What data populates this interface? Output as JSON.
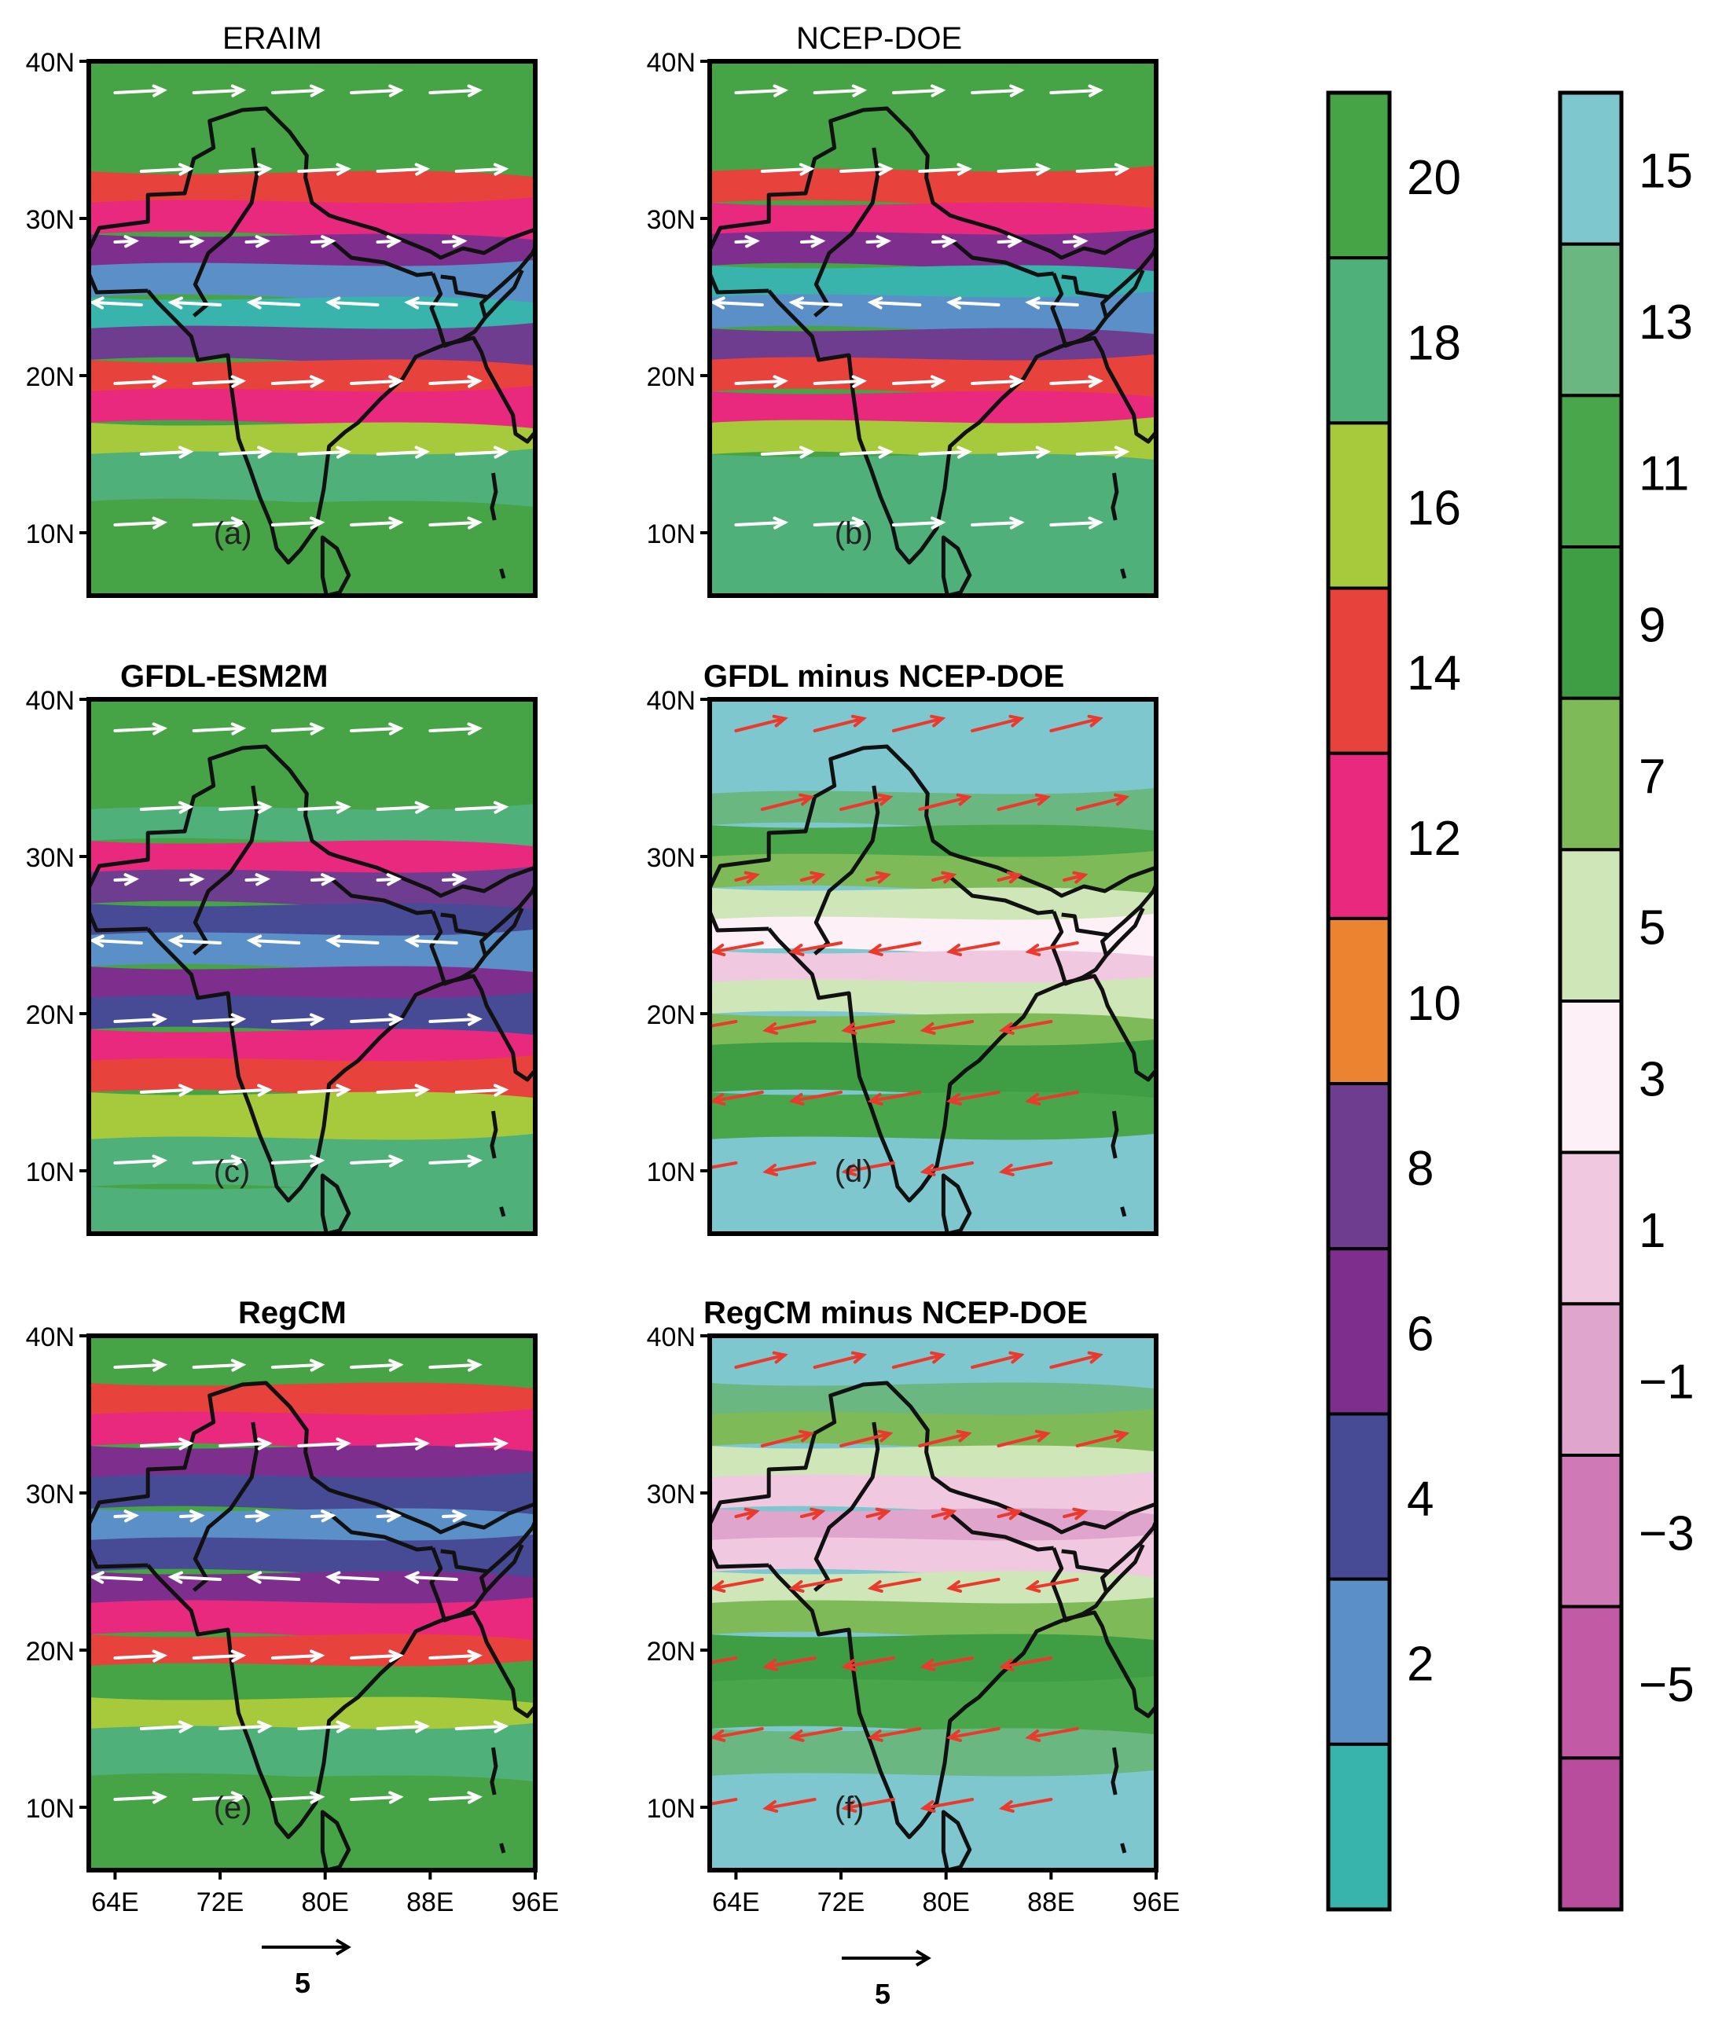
{
  "panels": [
    {
      "id": "a",
      "title": "ERAIM",
      "label": "(a)",
      "type": "field",
      "vectorColor": "white",
      "bold": false
    },
    {
      "id": "b",
      "title": "NCEP-DOE",
      "label": "(b)",
      "type": "field",
      "vectorColor": "white",
      "bold": false
    },
    {
      "id": "c",
      "title": "GFDL-ESM2M",
      "label": "(c)",
      "type": "field",
      "vectorColor": "white",
      "bold": true
    },
    {
      "id": "d",
      "title": "GFDL minus NCEP-DOE",
      "label": "(d)",
      "type": "diff",
      "vectorColor": "red",
      "bold": true
    },
    {
      "id": "e",
      "title": "RegCM",
      "label": "(e)",
      "type": "field",
      "vectorColor": "white",
      "bold": true
    },
    {
      "id": "f",
      "title": "RegCM minus NCEP-DOE",
      "label": "(f)",
      "type": "diff",
      "vectorColor": "red",
      "bold": true
    }
  ],
  "lat_ticks": [
    "40N",
    "30N",
    "20N",
    "10N"
  ],
  "lon_ticks": [
    "64E",
    "72E",
    "80E",
    "88E",
    "96E"
  ],
  "map_extent": {
    "lon": [
      62,
      96
    ],
    "lat": [
      6,
      40
    ]
  },
  "reference_vector": {
    "label": "5",
    "value": 5
  },
  "colorbar_field": {
    "labels": [
      "20",
      "18",
      "16",
      "14",
      "12",
      "10",
      "8",
      "6",
      "4",
      "2"
    ],
    "colors": [
      "#46a346",
      "#4fb07a",
      "#a7c93c",
      "#e8423c",
      "#e8297d",
      "#eb8330",
      "#6f3d8f",
      "#7e2f8e",
      "#474a95",
      "#5b8fc8",
      "#38b4ad"
    ]
  },
  "colorbar_diff": {
    "labels": [
      "15",
      "13",
      "11",
      "9",
      "7",
      "5",
      "3",
      "1",
      "-1",
      "-3",
      "-5"
    ],
    "colors": [
      "#7ec7cf",
      "#6bb781",
      "#49a64a",
      "#3f9e44",
      "#7eba57",
      "#cfe6b9",
      "#fdf0f6",
      "#f0c9e0",
      "#e0a5cc",
      "#cf79b6",
      "#c35aa6",
      "#b84d9d"
    ]
  }
}
